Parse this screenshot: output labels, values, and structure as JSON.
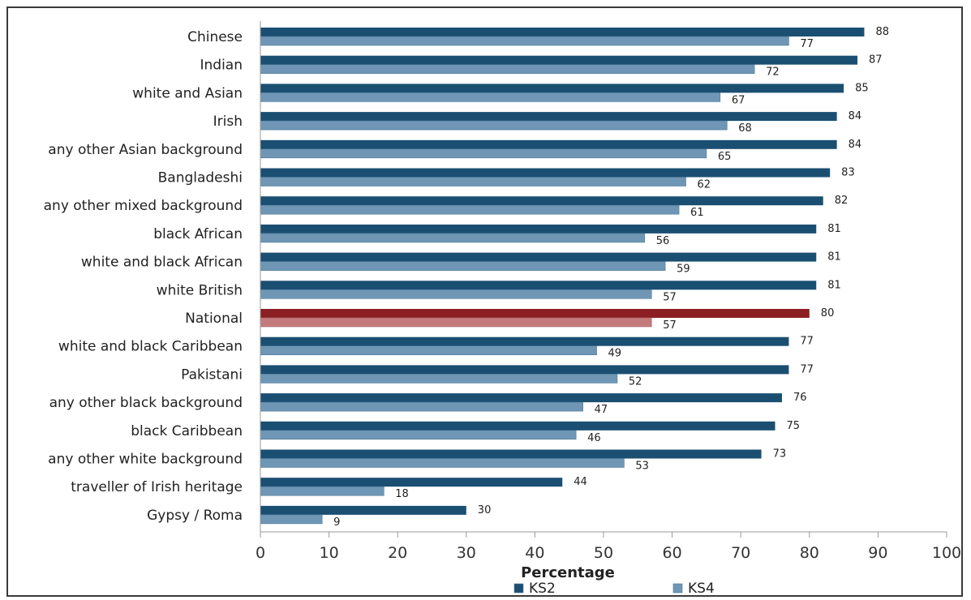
{
  "chart_data": {
    "type": "bar",
    "orientation": "horizontal",
    "title": "",
    "xlabel": "Percentage",
    "ylabel": "",
    "xlim": [
      0,
      100
    ],
    "x_ticks": [
      0,
      10,
      20,
      30,
      40,
      50,
      60,
      70,
      80,
      90,
      100
    ],
    "grid": false,
    "legend_position": "bottom",
    "categories": [
      "Chinese",
      "Indian",
      "white and Asian",
      "Irish",
      "any other Asian background",
      "Bangladeshi",
      "any other mixed background",
      "black African",
      "white and black African",
      "white British",
      "National",
      "white and black Caribbean",
      "Pakistani",
      "any other black background",
      "black Caribbean",
      "any other white background",
      "traveller of Irish heritage",
      "Gypsy / Roma"
    ],
    "series": [
      {
        "name": "KS2",
        "color": "#1b4f72",
        "values": [
          88,
          87,
          85,
          84,
          84,
          83,
          82,
          81,
          81,
          81,
          80,
          77,
          77,
          76,
          75,
          73,
          44,
          30
        ]
      },
      {
        "name": "KS4",
        "color": "#6f97b5",
        "values": [
          77,
          72,
          67,
          68,
          65,
          62,
          61,
          56,
          59,
          57,
          57,
          49,
          52,
          47,
          46,
          53,
          18,
          9
        ]
      }
    ],
    "highlight": {
      "category": "National",
      "colors": {
        "KS2": "#8b1f24",
        "KS4": "#c47a7c"
      }
    }
  }
}
